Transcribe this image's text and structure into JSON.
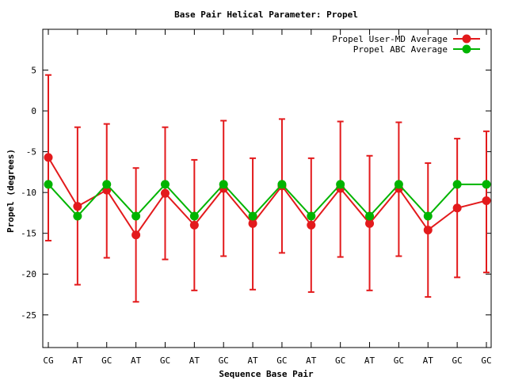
{
  "chart_data": {
    "type": "line",
    "title": "Base Pair Helical Parameter: Propel",
    "xlabel": "Sequence Base Pair",
    "ylabel": "Propel (degrees)",
    "categories": [
      "CG",
      "AT",
      "GC",
      "AT",
      "GC",
      "AT",
      "GC",
      "AT",
      "GC",
      "AT",
      "GC",
      "AT",
      "GC",
      "AT",
      "GC",
      "GC"
    ],
    "ylim": [
      -29,
      10
    ],
    "yticks": [
      5,
      0,
      -5,
      -10,
      -15,
      -20,
      -25
    ],
    "grid": false,
    "legend_position": "top-right",
    "series": [
      {
        "name": "Propel User-MD Average",
        "color": "#e31a1c",
        "values": [
          -5.7,
          -11.7,
          -9.7,
          -15.2,
          -10.1,
          -14.0,
          -9.5,
          -13.8,
          -9.2,
          -14.0,
          -9.5,
          -13.8,
          -9.5,
          -14.6,
          -11.9,
          -11.0
        ],
        "error_low": [
          -15.9,
          -21.3,
          -18.0,
          -23.4,
          -18.2,
          -22.0,
          -17.8,
          -21.9,
          -17.4,
          -22.2,
          -17.9,
          -22.0,
          -17.8,
          -22.8,
          -20.4,
          -19.8
        ],
        "error_high": [
          4.4,
          -2.0,
          -1.6,
          -7.0,
          -2.0,
          -6.0,
          -1.2,
          -5.8,
          -1.0,
          -5.8,
          -1.3,
          -5.5,
          -1.4,
          -6.4,
          -3.4,
          -2.5
        ]
      },
      {
        "name": "Propel ABC Average",
        "color": "#00b400",
        "values": [
          -9.0,
          -12.9,
          -9.0,
          -12.9,
          -9.0,
          -12.9,
          -9.0,
          -12.9,
          -9.0,
          -12.9,
          -9.0,
          -12.9,
          -9.0,
          -12.9,
          -9.0,
          -9.0
        ]
      }
    ]
  }
}
